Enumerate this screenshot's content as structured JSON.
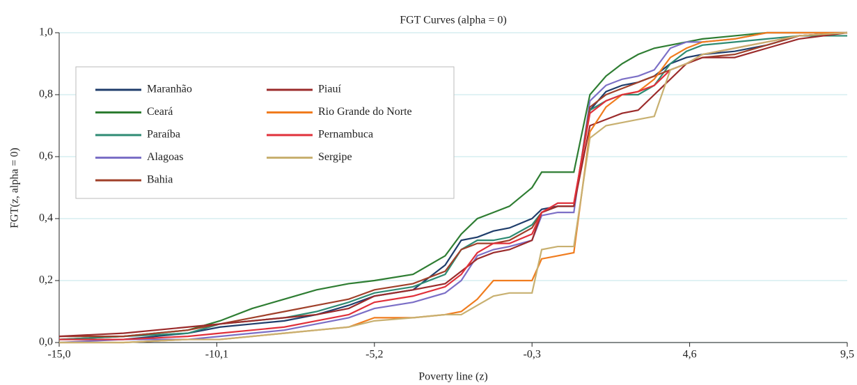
{
  "chart_data": {
    "type": "line",
    "title": "FGT Curves (alpha = 0)",
    "x_label": "Poverty line (z)",
    "y_label": "FGT(z, alpha = 0)",
    "x": [
      -15,
      -13,
      -11,
      -10,
      -9,
      -8,
      -7,
      -6,
      -5.2,
      -4,
      -3,
      -2.5,
      -2,
      -1.5,
      -1,
      -0.3,
      0,
      0.5,
      1,
      1.5,
      2,
      2.5,
      3,
      3.5,
      4,
      4.5,
      5,
      6,
      7,
      8,
      9.5
    ],
    "series": [
      {
        "name": "Maranhão",
        "color": "#1f3d6b",
        "values": [
          0.01,
          0.01,
          0.03,
          0.05,
          0.06,
          0.07,
          0.09,
          0.12,
          0.15,
          0.17,
          0.25,
          0.33,
          0.34,
          0.36,
          0.37,
          0.4,
          0.43,
          0.44,
          0.44,
          0.75,
          0.81,
          0.83,
          0.84,
          0.86,
          0.9,
          0.92,
          0.93,
          0.94,
          0.96,
          0.99,
          1.0
        ]
      },
      {
        "name": "Ceará",
        "color": "#2e7d32",
        "values": [
          0.01,
          0.02,
          0.04,
          0.07,
          0.11,
          0.14,
          0.17,
          0.19,
          0.2,
          0.22,
          0.28,
          0.35,
          0.4,
          0.42,
          0.44,
          0.5,
          0.55,
          0.55,
          0.55,
          0.8,
          0.86,
          0.9,
          0.93,
          0.95,
          0.96,
          0.97,
          0.98,
          0.99,
          1.0,
          1.0,
          1.0
        ]
      },
      {
        "name": "Paraíba",
        "color": "#2e8b73",
        "values": [
          0.01,
          0.02,
          0.03,
          0.06,
          0.07,
          0.08,
          0.1,
          0.13,
          0.16,
          0.18,
          0.22,
          0.3,
          0.33,
          0.33,
          0.34,
          0.38,
          0.42,
          0.44,
          0.44,
          0.75,
          0.78,
          0.8,
          0.8,
          0.83,
          0.9,
          0.94,
          0.96,
          0.97,
          0.98,
          0.99,
          0.99
        ]
      },
      {
        "name": "Alagoas",
        "color": "#7b6fc6",
        "values": [
          0.0,
          0.01,
          0.01,
          0.02,
          0.03,
          0.04,
          0.06,
          0.08,
          0.11,
          0.13,
          0.16,
          0.2,
          0.28,
          0.3,
          0.31,
          0.33,
          0.41,
          0.42,
          0.42,
          0.78,
          0.83,
          0.85,
          0.86,
          0.88,
          0.95,
          0.97,
          0.97,
          0.98,
          1.0,
          1.0,
          1.0
        ]
      },
      {
        "name": "Bahia",
        "color": "#a0402a",
        "values": [
          0.02,
          0.02,
          0.04,
          0.06,
          0.08,
          0.1,
          0.12,
          0.14,
          0.17,
          0.19,
          0.23,
          0.3,
          0.32,
          0.32,
          0.33,
          0.37,
          0.42,
          0.44,
          0.44,
          0.76,
          0.8,
          0.82,
          0.84,
          0.86,
          0.88,
          0.9,
          0.92,
          0.93,
          0.96,
          0.99,
          1.0
        ]
      },
      {
        "name": "Piauí",
        "color": "#9b2b2b",
        "values": [
          0.02,
          0.03,
          0.05,
          0.06,
          0.07,
          0.08,
          0.09,
          0.11,
          0.15,
          0.17,
          0.19,
          0.23,
          0.27,
          0.29,
          0.3,
          0.33,
          0.42,
          0.44,
          0.44,
          0.7,
          0.72,
          0.74,
          0.75,
          0.8,
          0.85,
          0.9,
          0.92,
          0.92,
          0.95,
          0.98,
          1.0
        ]
      },
      {
        "name": "Rio Grande do Norte",
        "color": "#f07c1e",
        "values": [
          0.0,
          0.0,
          0.01,
          0.01,
          0.02,
          0.03,
          0.04,
          0.05,
          0.08,
          0.08,
          0.09,
          0.1,
          0.14,
          0.2,
          0.2,
          0.2,
          0.27,
          0.28,
          0.29,
          0.68,
          0.76,
          0.8,
          0.81,
          0.85,
          0.92,
          0.95,
          0.97,
          0.98,
          1.0,
          1.0,
          1.0
        ]
      },
      {
        "name": "Pernambuca",
        "color": "#e0303a",
        "values": [
          0.01,
          0.01,
          0.02,
          0.03,
          0.04,
          0.05,
          0.07,
          0.09,
          0.13,
          0.15,
          0.18,
          0.22,
          0.29,
          0.32,
          0.32,
          0.35,
          0.42,
          0.45,
          0.45,
          0.74,
          0.78,
          0.8,
          0.81,
          0.83,
          0.88,
          0.9,
          0.93,
          0.95,
          0.97,
          0.99,
          1.0
        ]
      },
      {
        "name": "Sergipe",
        "color": "#c8b070",
        "values": [
          0.0,
          0.0,
          0.01,
          0.01,
          0.02,
          0.03,
          0.04,
          0.05,
          0.07,
          0.08,
          0.09,
          0.09,
          0.12,
          0.15,
          0.16,
          0.16,
          0.3,
          0.31,
          0.31,
          0.66,
          0.7,
          0.71,
          0.72,
          0.73,
          0.88,
          0.9,
          0.93,
          0.95,
          0.97,
          0.99,
          1.0
        ]
      }
    ],
    "xlim": [
      -15,
      9.5
    ],
    "xticks": [
      {
        "value": -15,
        "label": "-15,0"
      },
      {
        "value": -10.1,
        "label": "-10,1"
      },
      {
        "value": -5.2,
        "label": "-5,2"
      },
      {
        "value": -0.3,
        "label": "-0,3"
      },
      {
        "value": 4.6,
        "label": "4,6"
      },
      {
        "value": 9.5,
        "label": "9,5"
      }
    ],
    "ylim": [
      0,
      1
    ],
    "yticks": [
      {
        "value": 0,
        "label": "0,0"
      },
      {
        "value": 0.2,
        "label": "0,2"
      },
      {
        "value": 0.4,
        "label": "0,4"
      },
      {
        "value": 0.6,
        "label": "0,6"
      },
      {
        "value": 0.8,
        "label": "0,8"
      },
      {
        "value": 1,
        "label": "1,0"
      }
    ],
    "grid": true
  }
}
